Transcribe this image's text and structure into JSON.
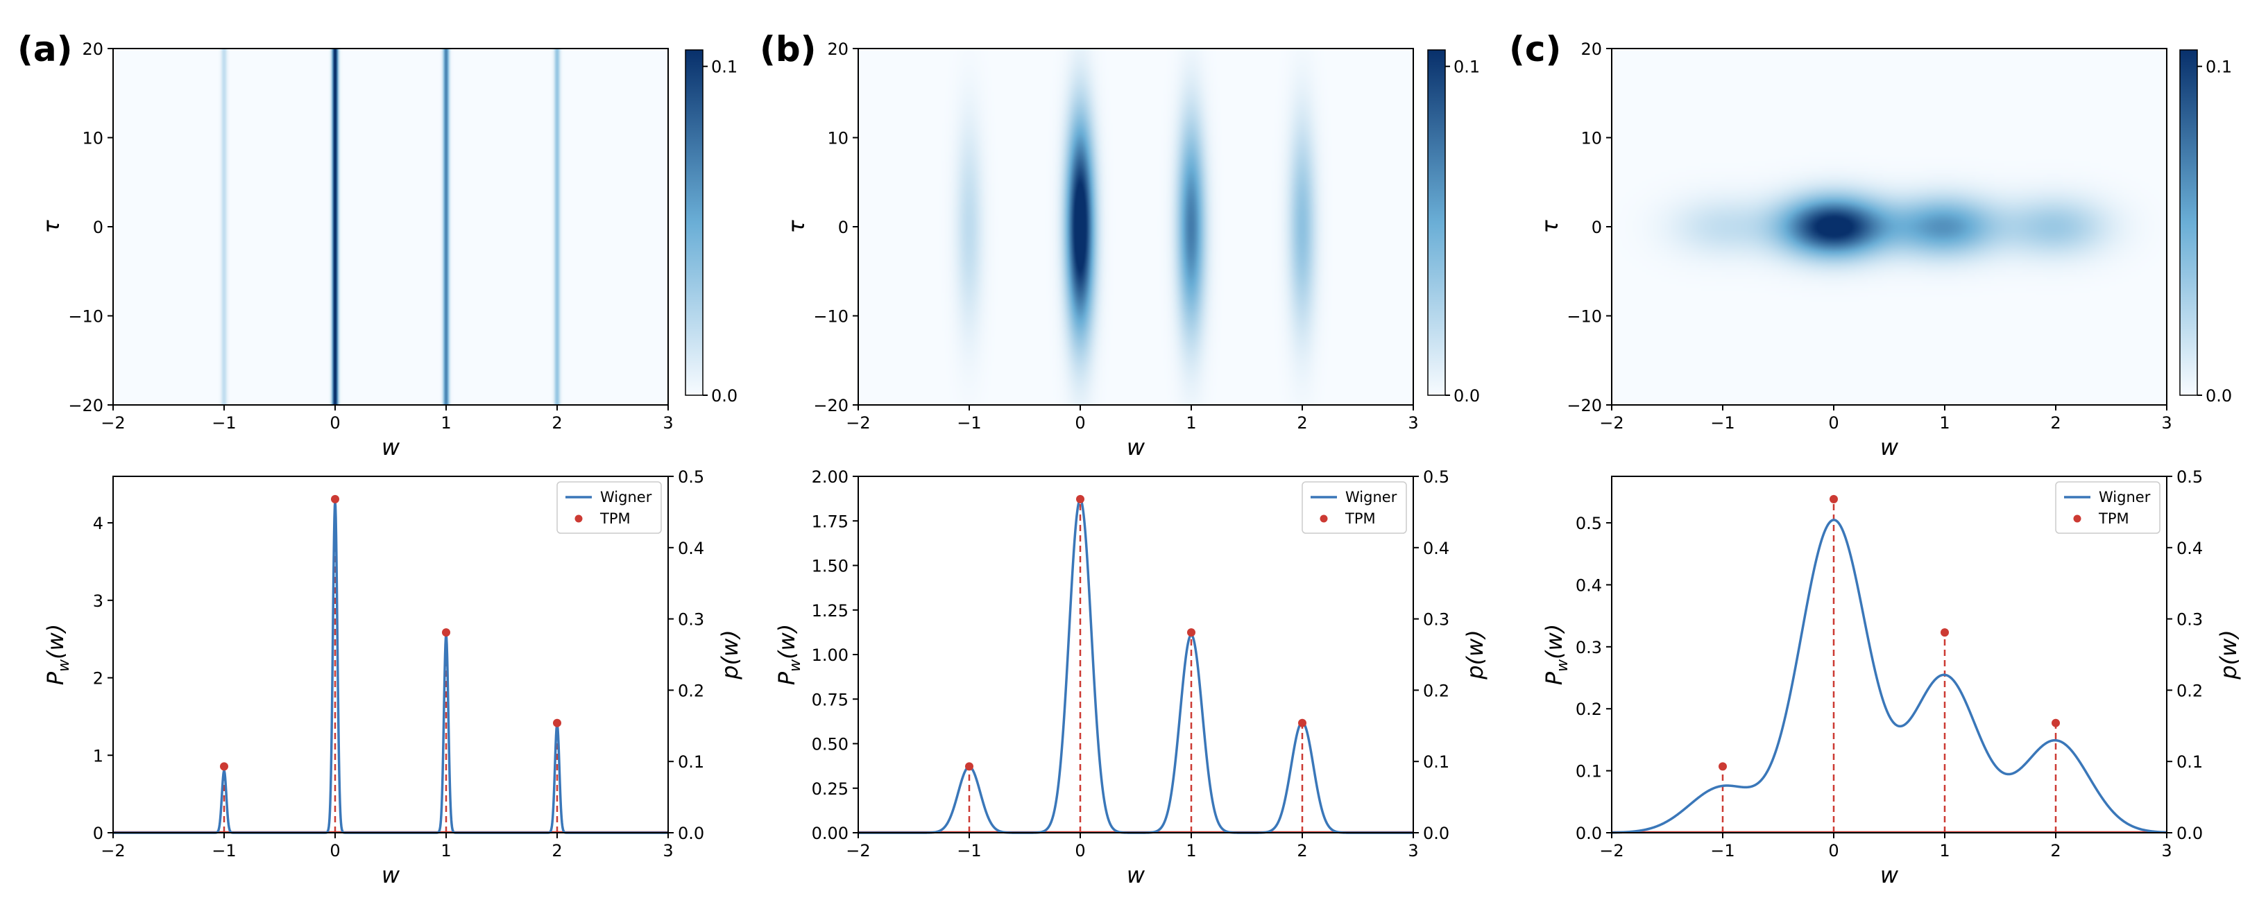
{
  "figure": {
    "colormap": {
      "low": "#f7fbff",
      "mid": "#6aaed6",
      "high": "#08306b"
    },
    "colors": {
      "wigner": "#3a77b9",
      "tpm": "#cc3a33",
      "axis": "#000000"
    }
  },
  "chart_data": [
    {
      "type": "heatmap",
      "panel": "(a)",
      "xlabel": "w",
      "ylabel": "τ",
      "xlim": [
        -2,
        3
      ],
      "ylim": [
        -20,
        20
      ],
      "xticks": [
        "−2",
        "−1",
        "0",
        "1",
        "2",
        "3"
      ],
      "yticks": [
        "−20",
        "−10",
        "0",
        "10",
        "20"
      ],
      "colorbar": {
        "range": [
          0.0,
          0.1
        ],
        "ticks": [
          "0.0",
          "0.1"
        ]
      },
      "peaks_w": [
        -1,
        0,
        1,
        2
      ],
      "peak_amplitudes": [
        0.02,
        0.115,
        0.07,
        0.036
      ],
      "sigma_w": 0.018,
      "sigma_tau": null
    },
    {
      "type": "heatmap",
      "panel": "(b)",
      "xlabel": "w",
      "ylabel": "τ",
      "xlim": [
        -2,
        3
      ],
      "ylim": [
        -20,
        20
      ],
      "xticks": [
        "−2",
        "−1",
        "0",
        "1",
        "2",
        "3"
      ],
      "yticks": [
        "−20",
        "−10",
        "0",
        "10",
        "20"
      ],
      "colorbar": {
        "range": [
          0.0,
          0.1
        ],
        "ticks": [
          "0.0",
          "0.1"
        ]
      },
      "peaks_w": [
        -1,
        0,
        1,
        2
      ],
      "peak_amplitudes": [
        0.02,
        0.12,
        0.07,
        0.037
      ],
      "sigma_w": 0.085,
      "sigma_tau": 8.0
    },
    {
      "type": "heatmap",
      "panel": "(c)",
      "xlabel": "w",
      "ylabel": "τ",
      "xlim": [
        -2,
        3
      ],
      "ylim": [
        -20,
        20
      ],
      "xticks": [
        "−2",
        "−1",
        "0",
        "1",
        "2",
        "3"
      ],
      "yticks": [
        "−20",
        "−10",
        "0",
        "10",
        "20"
      ],
      "colorbar": {
        "range": [
          0.0,
          0.1
        ],
        "ticks": [
          "0.0",
          "0.1"
        ]
      },
      "peaks_w": [
        -1,
        0,
        1,
        2
      ],
      "peak_amplitudes": [
        0.018,
        0.11,
        0.06,
        0.032
      ],
      "sigma_w": 0.33,
      "sigma_tau": 2.3
    },
    {
      "type": "line",
      "panel": "(a)",
      "xlabel": "w",
      "ylabel": "P_w(w)",
      "y2label": "p(w)",
      "xlim": [
        -2,
        3
      ],
      "ylim": [
        0,
        4.6
      ],
      "y2lim": [
        0,
        0.5
      ],
      "xticks": [
        "−2",
        "−1",
        "0",
        "1",
        "2",
        "3"
      ],
      "yticks": [
        0,
        1,
        2,
        3,
        4
      ],
      "ytick_labels": [
        "0",
        "1",
        "2",
        "3",
        "4"
      ],
      "y2ticks": [
        "0.0",
        "0.1",
        "0.2",
        "0.3",
        "0.4",
        "0.5"
      ],
      "legend": {
        "position": "top-right",
        "entries": [
          "Wigner",
          "TPM"
        ]
      },
      "series": [
        {
          "name": "Wigner",
          "kind": "sum_of_gaussians",
          "centers": [
            -1,
            0,
            1,
            2
          ],
          "heights": [
            0.8,
            4.27,
            2.55,
            1.4
          ],
          "sigma": 0.02
        },
        {
          "name": "TPM",
          "kind": "points",
          "x": [
            -1,
            0,
            1,
            2
          ],
          "y": [
            0.093,
            0.468,
            0.281,
            0.154
          ]
        }
      ]
    },
    {
      "type": "line",
      "panel": "(b)",
      "xlabel": "w",
      "ylabel": "P_w(w)",
      "y2label": "p(w)",
      "xlim": [
        -2,
        3
      ],
      "ylim": [
        0,
        2.0
      ],
      "y2lim": [
        0,
        0.5
      ],
      "xticks": [
        "−2",
        "−1",
        "0",
        "1",
        "2",
        "3"
      ],
      "yticks": [
        0,
        0.25,
        0.5,
        0.75,
        1.0,
        1.25,
        1.5,
        1.75,
        2.0
      ],
      "ytick_labels": [
        "0.00",
        "0.25",
        "0.50",
        "0.75",
        "1.00",
        "1.25",
        "1.50",
        "1.75",
        "2.00"
      ],
      "y2ticks": [
        "0.0",
        "0.1",
        "0.2",
        "0.3",
        "0.4",
        "0.5"
      ],
      "legend": {
        "position": "top-right",
        "entries": [
          "Wigner",
          "TPM"
        ]
      },
      "series": [
        {
          "name": "Wigner",
          "kind": "sum_of_gaussians",
          "centers": [
            -1,
            0,
            1,
            2
          ],
          "heights": [
            0.37,
            1.87,
            1.11,
            0.62
          ],
          "sigma": 0.1
        },
        {
          "name": "TPM",
          "kind": "points",
          "x": [
            -1,
            0,
            1,
            2
          ],
          "y": [
            0.093,
            0.468,
            0.281,
            0.154
          ]
        }
      ]
    },
    {
      "type": "line",
      "panel": "(c)",
      "xlabel": "w",
      "ylabel": "P_w(w)",
      "y2label": "p(w)",
      "xlim": [
        -2,
        3
      ],
      "ylim": [
        0,
        0.575
      ],
      "y2lim": [
        0,
        0.5
      ],
      "xticks": [
        "−2",
        "−1",
        "0",
        "1",
        "2",
        "3"
      ],
      "yticks": [
        0,
        0.1,
        0.2,
        0.3,
        0.4,
        0.5
      ],
      "ytick_labels": [
        "0.0",
        "0.1",
        "0.2",
        "0.3",
        "0.4",
        "0.5"
      ],
      "y2ticks": [
        "0.0",
        "0.1",
        "0.2",
        "0.3",
        "0.4",
        "0.5"
      ],
      "legend": {
        "position": "top-right",
        "entries": [
          "Wigner",
          "TPM"
        ]
      },
      "series": [
        {
          "name": "Wigner",
          "kind": "sum_of_gaussians",
          "centers": [
            -1,
            0,
            1,
            2
          ],
          "heights": [
            0.0737,
            0.5034,
            0.2522,
            0.1481
          ],
          "sigma": 0.3
        },
        {
          "name": "TPM",
          "kind": "points",
          "x": [
            -1,
            0,
            1,
            2
          ],
          "y": [
            0.093,
            0.468,
            0.281,
            0.154
          ]
        }
      ]
    }
  ]
}
